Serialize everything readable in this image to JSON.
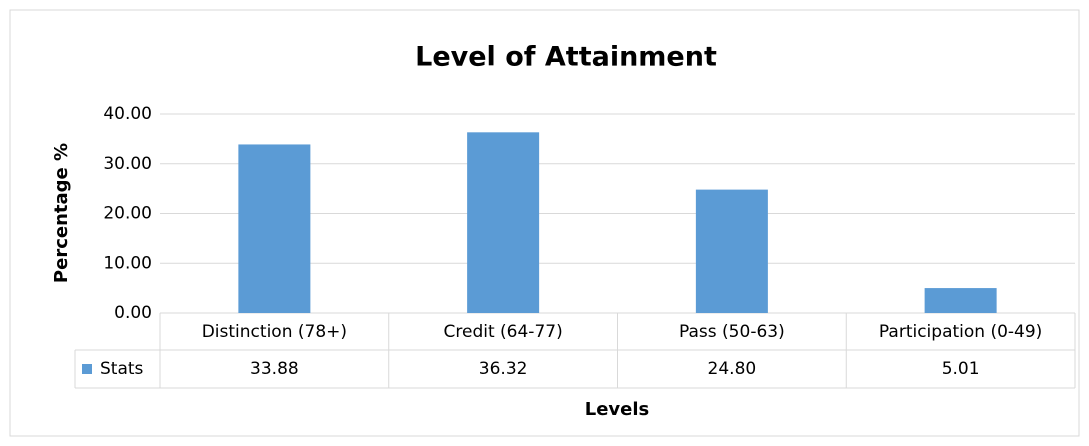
{
  "chart_data": {
    "type": "bar",
    "title": "Level of Attainment",
    "x_label": "Levels",
    "y_label": "Percentage %",
    "categories": [
      "Distinction (78+)",
      "Credit (64-77)",
      "Pass (50-63)",
      "Participation (0-49)"
    ],
    "series": [
      {
        "name": "Stats",
        "color": "#5b9bd5",
        "values": [
          33.88,
          36.32,
          24.8,
          5.01
        ],
        "value_labels": [
          "33.88",
          "36.32",
          "24.80",
          "5.01"
        ]
      }
    ],
    "ylim": [
      0,
      40
    ],
    "yticks": [
      {
        "value": 0,
        "label": "0.00"
      },
      {
        "value": 10,
        "label": "10.00"
      },
      {
        "value": 20,
        "label": "20.00"
      },
      {
        "value": 30,
        "label": "30.00"
      },
      {
        "value": 40,
        "label": "40.00"
      }
    ],
    "grid": true,
    "data_table": true
  }
}
